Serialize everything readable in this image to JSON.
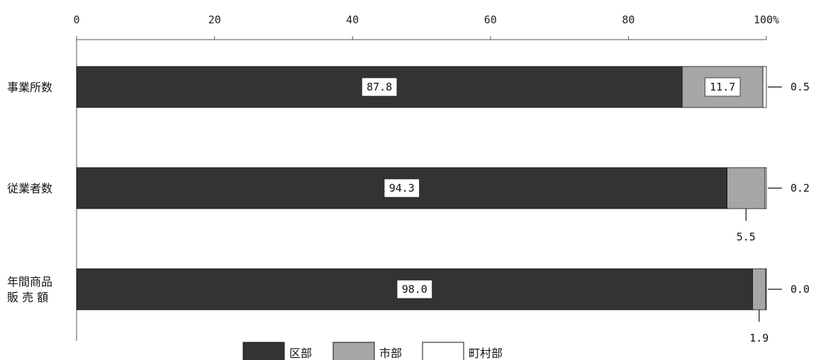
{
  "chart_data": {
    "type": "bar",
    "orientation": "horizontal",
    "stacked": "percent",
    "categories": [
      [
        "事業所数"
      ],
      [
        "従業者数"
      ],
      [
        "年間商品",
        "販 売 額"
      ]
    ],
    "series": [
      {
        "name": "区部",
        "values": [
          87.8,
          94.3,
          98.0
        ],
        "labels": [
          "87.8",
          "94.3",
          "98.0"
        ],
        "color": "#333333"
      },
      {
        "name": "市部",
        "values": [
          11.7,
          5.5,
          1.9
        ],
        "labels": [
          "11.7",
          "5.5",
          "1.9"
        ],
        "color": "#a6a6a6"
      },
      {
        "name": "町村部",
        "values": [
          0.5,
          0.2,
          0.0
        ],
        "labels": [
          "0.5",
          "0.2",
          "0.0"
        ],
        "color": "#ffffff"
      }
    ],
    "xticks": [
      "0",
      "20",
      "40",
      "60",
      "80",
      "100%"
    ],
    "xlim": [
      0,
      100
    ],
    "grid": false,
    "legend_position": "bottom-center"
  }
}
